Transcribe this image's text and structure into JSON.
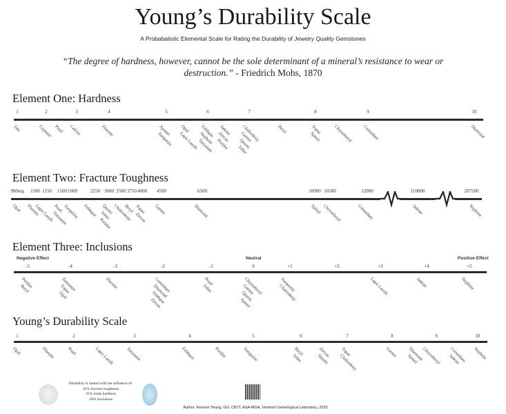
{
  "title": "Young’s Durability Scale",
  "subtitle": "A Probabalistic Elemental Scale for Rating the Durability of Jewelry Quality Gemstones",
  "quote": {
    "text": "“The degree of hardness, however, cannot be the sole determinant of a mineral’s resistance to wear or destruction.”",
    "attribution": " - Friedrich Mohs, 1870"
  },
  "sections": [
    {
      "heading": "Element One: Hardness",
      "ticks": [
        "1",
        "2",
        "3",
        "4",
        "5",
        "6",
        "7",
        "8",
        "9",
        "10"
      ],
      "gems": [
        [
          "Talc"
        ],
        [
          "Gypsum"
        ],
        [
          "Pearl"
        ],
        [
          "Calcite"
        ],
        [
          "Fluorite"
        ],
        [
          "Apatite",
          "Turquoise"
        ],
        [
          "Opal",
          "Lapis Lazuli"
        ],
        [
          "Feldspar",
          "Nephrite",
          "Tanzanite"
        ],
        [
          "Jadeite",
          "Zircon",
          "Peridot"
        ],
        [
          "Chalcedony",
          "Garnet",
          "Quartz",
          "Iolite"
        ],
        [
          "Beryl"
        ],
        [
          "Topaz",
          "Spinel"
        ],
        [
          "Chrysoberyl"
        ],
        [
          "Corundum"
        ],
        [
          "Diamond"
        ]
      ]
    },
    {
      "heading": "Element Two: Fracture Toughness",
      "ticks": [
        "900erg",
        "1100",
        "1150",
        "1500",
        "1600",
        "2250",
        "3000",
        "3500",
        "3750",
        "4000",
        "4500",
        "6500",
        "10000",
        "10500",
        "12000",
        "110000",
        "207500"
      ],
      "axis_breaks": 2,
      "gems": [
        [
          "Opal"
        ],
        [
          "Fluorite"
        ],
        [
          "Lapis Lazuli"
        ],
        [
          "Pearl",
          "Tanzanite"
        ],
        [
          "Turquoise"
        ],
        [
          "Feldspar"
        ],
        [
          "Quartz",
          "Iolite",
          "Peridot"
        ],
        [
          "Chalcedony"
        ],
        [
          "Beryl",
          "Zircon"
        ],
        [
          "Topaz"
        ],
        [
          "Garnet"
        ],
        [
          "Diamond"
        ],
        [
          "Spinel"
        ],
        [
          "Chrysoberyl"
        ],
        [
          "Corundum"
        ],
        [
          "Jadeite"
        ],
        [
          "Nephrite"
        ]
      ]
    },
    {
      "heading": "Element Three: Inclusions",
      "labels": {
        "negative": "Negative Effect",
        "neutral": "Neutral",
        "positive": "Positive Effect"
      },
      "ticks": [
        "-5",
        "-4",
        "-3",
        "-2",
        "-1",
        "0",
        "+1",
        "+2",
        "+3",
        "+4",
        "+5"
      ],
      "gems": [
        [
          "Peridot",
          "Beryl"
        ],
        [
          "Tanzanite",
          "Topaz",
          "Opal"
        ],
        [
          "Fluorite"
        ],
        [
          "Corundum",
          "Diamond",
          "Feldspar",
          "Zircon"
        ],
        [
          "Pearl",
          "Iolite"
        ],
        [
          "Chrysoberyl",
          "Garnet",
          "Quartz",
          "Spinel"
        ],
        [
          "Turquoise",
          "Chalcedony"
        ],
        [
          "Lapis Lazuli"
        ],
        [
          "Jadeite"
        ],
        [
          "Nephrite"
        ]
      ]
    },
    {
      "heading": "Young’s Durability Scale",
      "ticks": [
        "1",
        "2",
        "3",
        "4",
        "5",
        "6",
        "7",
        "8",
        "9",
        "10"
      ],
      "gems": [
        [
          "Opal"
        ],
        [
          "Fluorite"
        ],
        [
          "Pearl"
        ],
        [
          "Lapis Lazuli"
        ],
        [
          "Tanzanite"
        ],
        [
          "Feldspar"
        ],
        [
          "Peridot"
        ],
        [
          "Turquoise"
        ],
        [
          "Beryl",
          "Iolite"
        ],
        [
          "Zircon",
          "Quartz"
        ],
        [
          "Topaz",
          "Chalcedony"
        ],
        [
          "Garnet"
        ],
        [
          "Diamond",
          "Spinel"
        ],
        [
          "Chrysoberyl"
        ],
        [
          "Corundum",
          "Jadeite"
        ],
        [
          "Nephrite"
        ]
      ]
    }
  ],
  "footer": {
    "info_lines": [
      "Durability is ranked with the influence  of:",
      "45% fracture toughness",
      "35% mohs hardness",
      "20% inclusions"
    ],
    "author": "Author: Kennon Young, GG, CBJT, ASA-MGA, Vermont Gemological Laboratory, 2025"
  }
}
